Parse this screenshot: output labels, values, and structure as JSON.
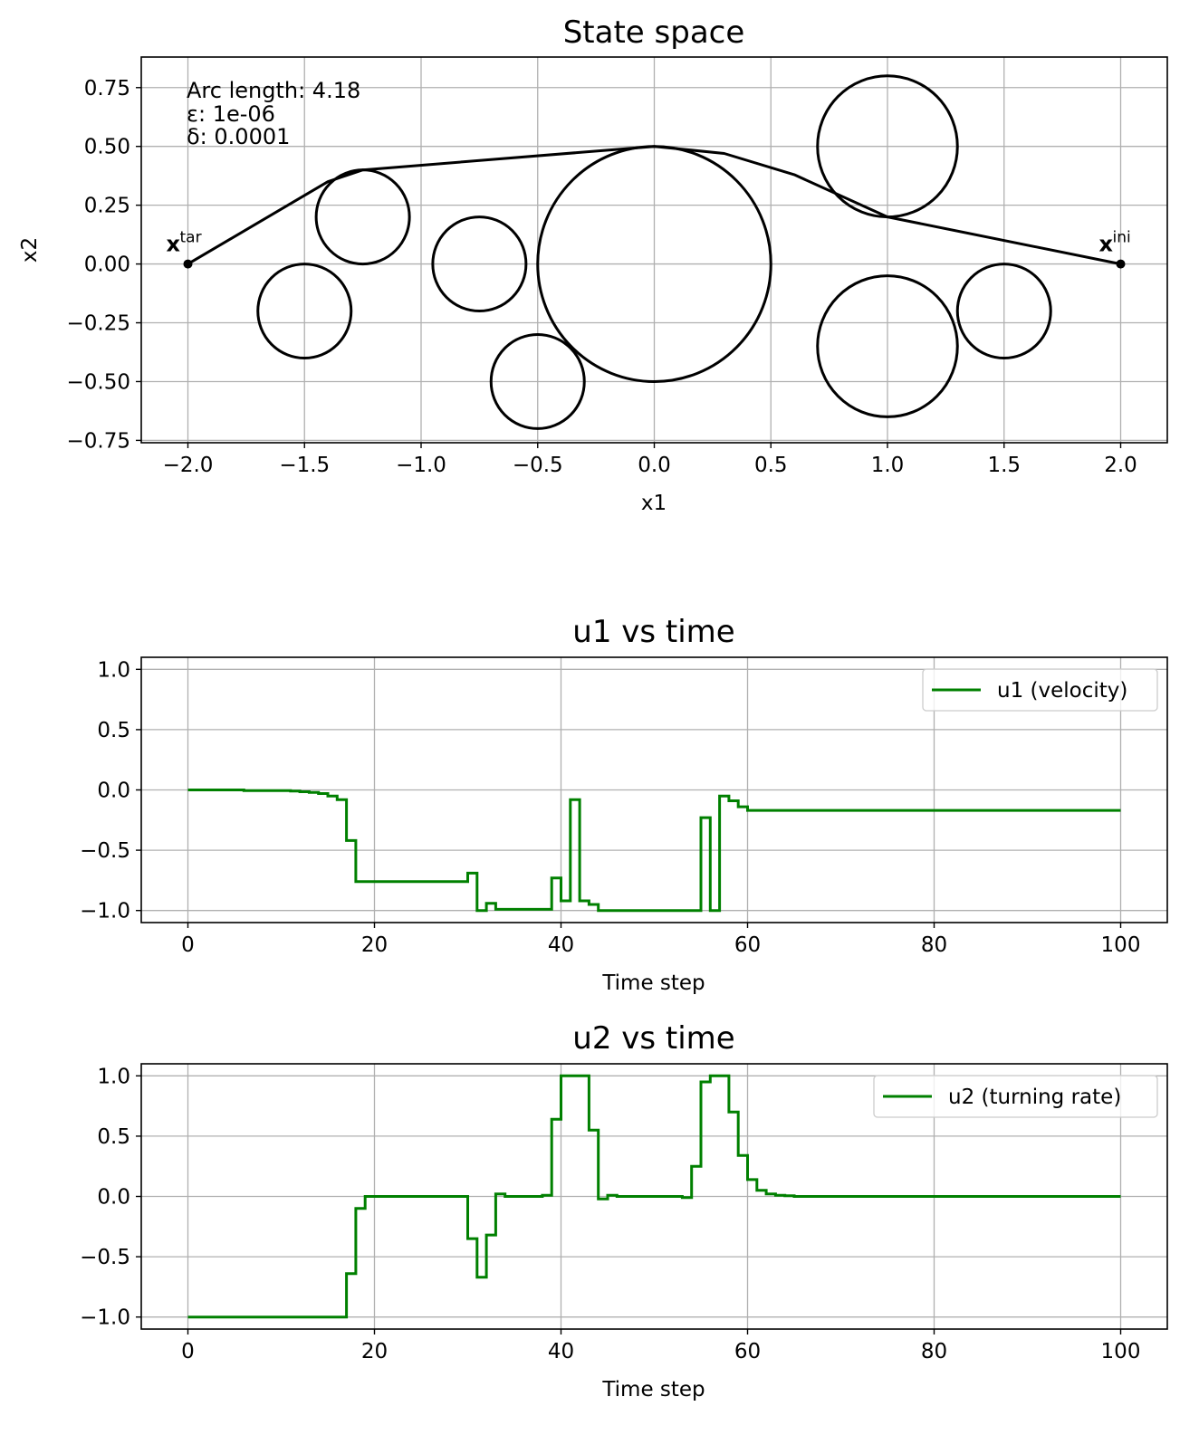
{
  "chart_data": [
    {
      "type": "scatter",
      "title": "State space",
      "xlabel": "x1",
      "ylabel": "x2",
      "xlim": [
        -2.2,
        2.2
      ],
      "ylim": [
        -0.76,
        0.88
      ],
      "xticks": [
        -2.0,
        -1.5,
        -1.0,
        -0.5,
        0.0,
        0.5,
        1.0,
        1.5,
        2.0
      ],
      "xtick_labels": [
        "−2.0",
        "−1.5",
        "−1.0",
        "−0.5",
        "0.0",
        "0.5",
        "1.0",
        "1.5",
        "2.0"
      ],
      "yticks": [
        -0.75,
        -0.5,
        -0.25,
        0.0,
        0.25,
        0.5,
        0.75
      ],
      "ytick_labels": [
        "−0.75",
        "−0.50",
        "−0.25",
        "0.00",
        "0.25",
        "0.50",
        "0.75"
      ],
      "grid": true,
      "annotations": [
        "Arc length: 4.18",
        "ε: 1e-06",
        "δ: 0.0001"
      ],
      "color": "#000000",
      "obstacles": [
        {
          "cx": 0.0,
          "cy": 0.0,
          "r": 0.5
        },
        {
          "cx": 1.0,
          "cy": 0.5,
          "r": 0.3
        },
        {
          "cx": 1.0,
          "cy": -0.35,
          "r": 0.3
        },
        {
          "cx": 1.5,
          "cy": -0.2,
          "r": 0.2
        },
        {
          "cx": -1.25,
          "cy": 0.2,
          "r": 0.2
        },
        {
          "cx": -0.75,
          "cy": 0.0,
          "r": 0.2
        },
        {
          "cx": -1.5,
          "cy": -0.2,
          "r": 0.2
        },
        {
          "cx": -0.5,
          "cy": -0.5,
          "r": 0.2
        }
      ],
      "path": [
        [
          2.0,
          0.0
        ],
        [
          1.0,
          0.2
        ],
        [
          0.6,
          0.38
        ],
        [
          0.3,
          0.47
        ],
        [
          0.0,
          0.5
        ],
        [
          -1.25,
          0.4
        ],
        [
          -1.4,
          0.35
        ],
        [
          -2.0,
          0.0
        ]
      ],
      "points": [
        {
          "label": "x",
          "sup": "tar",
          "x": -2.0,
          "y": 0.0
        },
        {
          "label": "x",
          "sup": "ini",
          "x": 2.0,
          "y": 0.0
        }
      ]
    },
    {
      "type": "line",
      "title": "u1 vs time",
      "xlabel": "Time step",
      "ylabel": "",
      "xlim": [
        -5,
        105
      ],
      "ylim": [
        -1.1,
        1.1
      ],
      "xticks": [
        0,
        20,
        40,
        60,
        80,
        100
      ],
      "xtick_labels": [
        "0",
        "20",
        "40",
        "60",
        "80",
        "100"
      ],
      "yticks": [
        -1.0,
        -0.5,
        0.0,
        0.5,
        1.0
      ],
      "ytick_labels": [
        "−1.0",
        "−0.5",
        "0.0",
        "0.5",
        "1.0"
      ],
      "grid": true,
      "legend": "top-right",
      "series": [
        {
          "name": "u1 (velocity)",
          "color": "#008000",
          "step": true,
          "x": [
            0,
            6,
            11,
            12,
            13,
            14,
            15,
            16,
            17,
            18,
            30,
            31,
            32,
            33,
            39,
            40,
            41,
            42,
            43,
            44,
            55,
            56,
            57,
            58,
            59,
            60,
            100
          ],
          "y": [
            0.0,
            -0.005,
            -0.01,
            -0.015,
            -0.02,
            -0.03,
            -0.05,
            -0.08,
            -0.42,
            -0.76,
            -0.69,
            -1.0,
            -0.94,
            -0.99,
            -0.73,
            -0.92,
            -0.08,
            -0.92,
            -0.95,
            -1.0,
            -0.23,
            -1.0,
            -0.05,
            -0.09,
            -0.14,
            -0.17,
            -0.17
          ]
        }
      ]
    },
    {
      "type": "line",
      "title": "u2 vs time",
      "xlabel": "Time step",
      "ylabel": "",
      "xlim": [
        -5,
        105
      ],
      "ylim": [
        -1.1,
        1.1
      ],
      "xticks": [
        0,
        20,
        40,
        60,
        80,
        100
      ],
      "xtick_labels": [
        "0",
        "20",
        "40",
        "60",
        "80",
        "100"
      ],
      "yticks": [
        -1.0,
        -0.5,
        0.0,
        0.5,
        1.0
      ],
      "ytick_labels": [
        "−1.0",
        "−0.5",
        "0.0",
        "0.5",
        "1.0"
      ],
      "grid": true,
      "legend": "top-right",
      "series": [
        {
          "name": "u2 (turning rate)",
          "color": "#008000",
          "step": true,
          "x": [
            0,
            17,
            18,
            19,
            30,
            31,
            32,
            33,
            34,
            38,
            39,
            40,
            43,
            44,
            45,
            46,
            53,
            54,
            55,
            56,
            58,
            59,
            60,
            61,
            62,
            63,
            64,
            65,
            100
          ],
          "y": [
            -1.0,
            -0.64,
            -0.1,
            0.0,
            -0.35,
            -0.67,
            -0.32,
            0.02,
            0.0,
            0.01,
            0.64,
            1.0,
            0.55,
            -0.02,
            0.01,
            0.0,
            -0.01,
            0.25,
            0.95,
            1.0,
            0.7,
            0.34,
            0.14,
            0.05,
            0.02,
            0.01,
            0.005,
            0.0,
            0.0
          ]
        }
      ]
    }
  ]
}
